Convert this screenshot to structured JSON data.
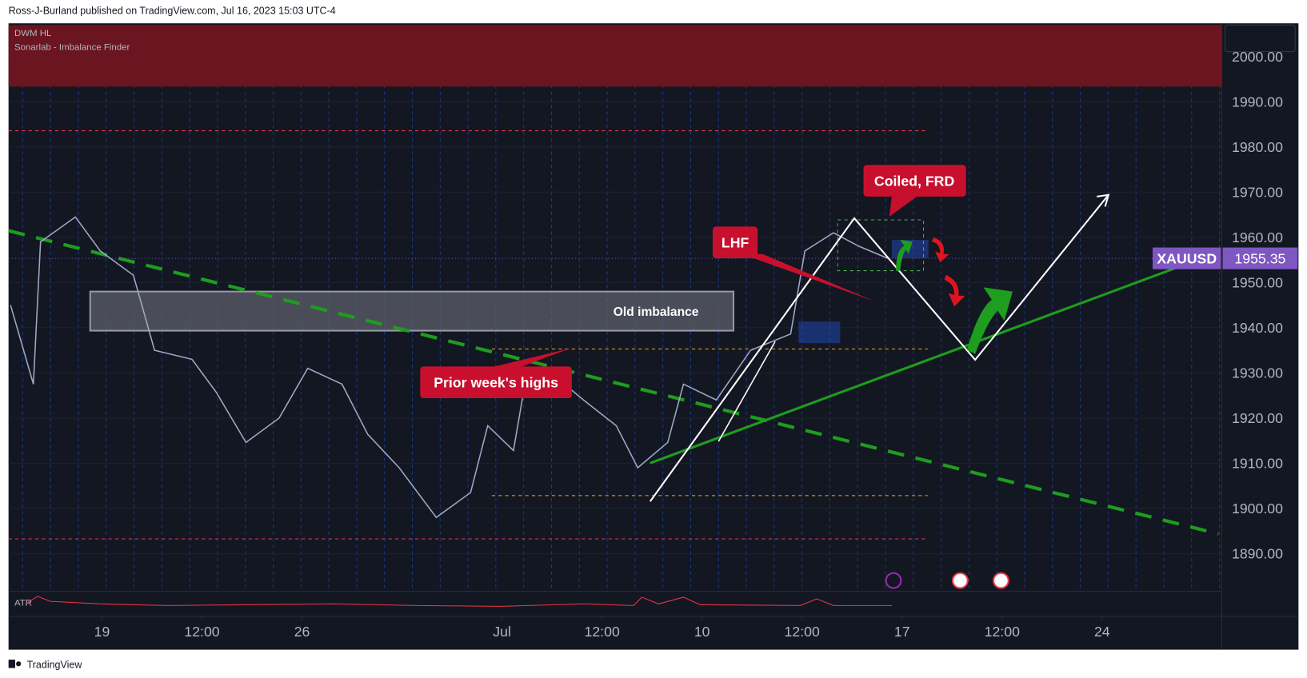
{
  "header": {
    "text": "Ross-J-Burland published on TradingView.com, Jul 16, 2023 15:03 UTC-4"
  },
  "footer": {
    "brand": "TradingView"
  },
  "chart_data": {
    "type": "line",
    "indicators": [
      "DWM HL",
      "Sonarlab - Imbalance Finder"
    ],
    "lower_pane": "ATR",
    "annotations": [
      "Coiled, FRD",
      "LHF",
      "Old imbalance",
      "Prior week's highs"
    ],
    "x": [
      -3.2,
      -2.4,
      -2.15,
      -0.93,
      -0.06,
      1.1,
      1.84,
      3.15,
      4.0,
      5.04,
      6.2,
      7.2,
      8.4,
      9.3,
      10.4,
      11.7,
      12.9,
      13.5,
      14.4,
      14.8,
      16.0,
      16.85,
      18.0,
      18.75,
      19.8,
      20.35,
      21.5,
      22.7,
      24.1,
      24.6,
      25.6,
      26.5,
      27.5
    ],
    "series": [
      {
        "name": "XAUUSD",
        "color": "#9fa8c7",
        "values": [
          1945,
          1927.5,
          1959,
          1964.5,
          1957,
          1951.6,
          1935,
          1933,
          1925.7,
          1914.6,
          1920,
          1931,
          1927.5,
          1916.4,
          1909,
          1898,
          1903.5,
          1918.3,
          1912.8,
          1927.5,
          1928.5,
          1924,
          1918.3,
          1909,
          1914.6,
          1927.5,
          1924,
          1935,
          1938.6,
          1957,
          1961,
          1958,
          1955.35
        ]
      }
    ],
    "last_price": 1955.35,
    "xlim": [
      -3.27,
      39.19
    ],
    "xticks": [
      {
        "value": 0,
        "label": "19"
      },
      {
        "value": 3.5,
        "label": "12:00"
      },
      {
        "value": 7,
        "label": "26"
      },
      {
        "value": 14,
        "label": "Jul"
      },
      {
        "value": 17.5,
        "label": "12:00"
      },
      {
        "value": 21,
        "label": "10"
      },
      {
        "value": 24.5,
        "label": "12:00"
      },
      {
        "value": 28,
        "label": "17"
      },
      {
        "value": 31.5,
        "label": "12:00"
      },
      {
        "value": 35,
        "label": "24"
      }
    ],
    "ylim": [
      1882,
      2007
    ],
    "yticks": [
      {
        "value": 1890,
        "label": "1890.00"
      },
      {
        "value": 1900,
        "label": "1900.00"
      },
      {
        "value": 1910,
        "label": "1910.00"
      },
      {
        "value": 1920,
        "label": "1920.00"
      },
      {
        "value": 1930,
        "label": "1930.00"
      },
      {
        "value": 1940,
        "label": "1940.00"
      },
      {
        "value": 1950,
        "label": "1950.00"
      },
      {
        "value": 1960,
        "label": "1960.00"
      },
      {
        "value": 1970,
        "label": "1970.00"
      },
      {
        "value": 1980,
        "label": "1980.00"
      },
      {
        "value": 1990,
        "label": "1990.00"
      },
      {
        "value": 2000,
        "label": "2000.00"
      }
    ]
  }
}
